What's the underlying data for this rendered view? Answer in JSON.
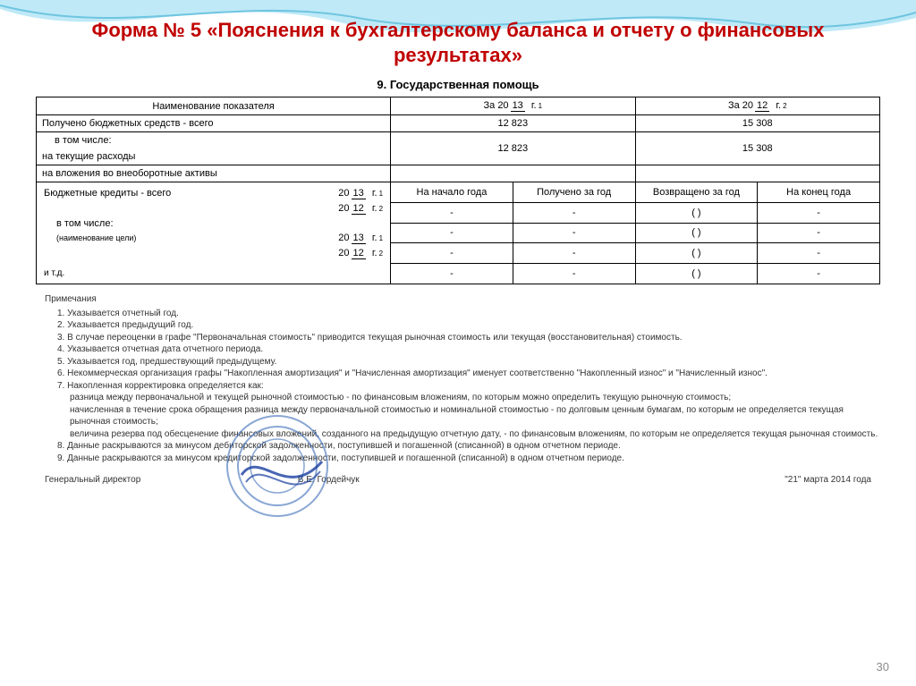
{
  "title": "Форма № 5 «Пояснения к бухгалтерскому баланса и отчету о финансовых результатах»",
  "section_heading": "9. Государственная помощь",
  "header": {
    "name_col": "Наименование показателя",
    "period_prefix": "За 20",
    "period_suffix": "г.",
    "year_a": "13",
    "year_b": "12",
    "sup_a": "1",
    "sup_b": "2"
  },
  "rows_top": [
    {
      "label": "Получено бюджетных средств - всего",
      "indent": false,
      "v1": "12 823",
      "v2": "15 308"
    },
    {
      "label": "в том числе:",
      "indent": true,
      "v1": "",
      "v2": ""
    },
    {
      "label": "на текущие расходы",
      "indent": false,
      "v1": "12 823",
      "v2": "15 308"
    },
    {
      "label": "на вложения во внеоборотные активы",
      "indent": false,
      "v1": "",
      "v2": ""
    }
  ],
  "subheader": {
    "c1": "На начало года",
    "c2": "Получено за год",
    "c3": "Возвращено за год",
    "c4": "На конец года"
  },
  "credits_block": {
    "title": "Бюджетные кредиты - всего",
    "sub_title_1": "в том числе:",
    "sub_title_2": "(наименование цели)",
    "etc": "и т.д.",
    "year_prefix": "20",
    "rows": [
      {
        "year": "13",
        "sup": "1",
        "c1": "-",
        "c2": "-",
        "c3": "(          )",
        "c4": "-"
      },
      {
        "year": "12",
        "sup": "2",
        "c1": "-",
        "c2": "-",
        "c3": "(          )",
        "c4": "-"
      },
      {
        "year": "13",
        "sup": "1",
        "c1": "-",
        "c2": "-",
        "c3": "(          )",
        "c4": "-"
      },
      {
        "year": "12",
        "sup": "2",
        "c1": "-",
        "c2": "-",
        "c3": "(          )",
        "c4": "-"
      }
    ]
  },
  "notes": {
    "heading": "Примечания",
    "items": [
      "1. Указывается отчетный год.",
      "2. Указывается предыдущий год.",
      "3. В случае переоценки в графе \"Первоначальная стоимость\" приводится текущая рыночная стоимость или текущая (восстановительная) стоимость.",
      "4. Указывается отчетная дата отчетного периода.",
      "5. Указывается год, предшествующий предыдущему.",
      "6. Некоммерческая организация графы \"Накопленная амортизация\" и \"Начисленная амортизация\" именует соответственно \"Накопленный износ\" и \"Начисленный износ\".",
      "7. Накопленная корректировка определяется как:",
      "разница между первоначальной и текущей рыночной стоимостью - по финансовым вложениям, по которым можно определить текущую рыночную стоимость;",
      "начисленная в течение срока обращения разница между первоначальной стоимостью и номинальной стоимостью - по долговым ценным бумагам, по которым не определяется текущая рыночная стоимость;",
      "величина резерва под обесценение финансовых вложений, созданного на предыдущую отчетную дату, - по финансовым вложениям, по которым не определяется текущая рыночная стоимость.",
      "8. Данные раскрываются за минусом дебиторской задолженности, поступившей и погашенной (списанной) в одном отчетном периоде.",
      "9. Данные раскрываются за минусом кредиторской задолженности, поступившей и погашенной (списанной) в одном отчетном периоде."
    ]
  },
  "signature": {
    "role": "Генеральный директор",
    "name": "В.Е. Гордейчук",
    "date": "\"21\" марта  2014 года"
  },
  "page_number": "30",
  "colors": {
    "title": "#c00000",
    "wave1": "#bfe9f7",
    "wave2": "#6ec5e0",
    "stamp": "#2a5fb0",
    "stamp_sig": "#1a3fa0"
  },
  "layout": {
    "col_widths_pct": [
      42,
      14.5,
      14.5,
      14.5,
      14.5
    ]
  }
}
